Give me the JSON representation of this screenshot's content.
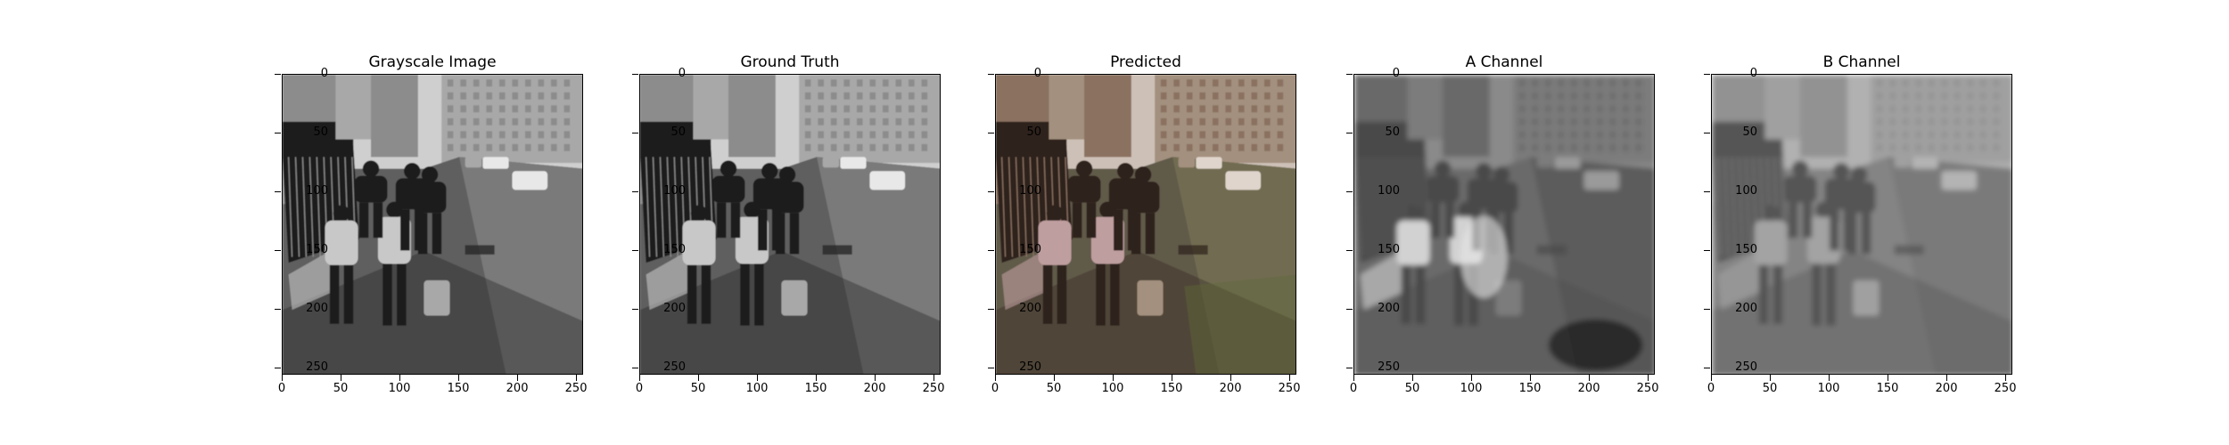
{
  "figure": {
    "panels": [
      {
        "title": "Grayscale Image",
        "image": "grayscale street scene, people walking by fence with cars and apartment blocks",
        "tint": "gray"
      },
      {
        "title": "Ground Truth",
        "image": "original street scene photo, near-monochrome",
        "tint": "gray"
      },
      {
        "title": "Predicted",
        "image": "colorized street scene, warm brown/pink tones with green on pavement",
        "tint": "color"
      },
      {
        "title": "A Channel",
        "image": "blurry grayscale A chroma channel with bright figures and dark blotch",
        "tint": "a"
      },
      {
        "title": "B Channel",
        "image": "blurry grayscale B chroma channel",
        "tint": "b"
      }
    ],
    "axis": {
      "x_ticks": [
        0,
        50,
        100,
        150,
        200,
        250
      ],
      "y_ticks": [
        0,
        50,
        100,
        150,
        200,
        250
      ],
      "x_range": [
        0,
        256
      ],
      "y_range": [
        0,
        256
      ]
    },
    "colors": {
      "sky": "#d8d8d8",
      "building": "#9a9a9a",
      "shadow": "#2a2a2a",
      "road": "#6a6a6a"
    }
  }
}
